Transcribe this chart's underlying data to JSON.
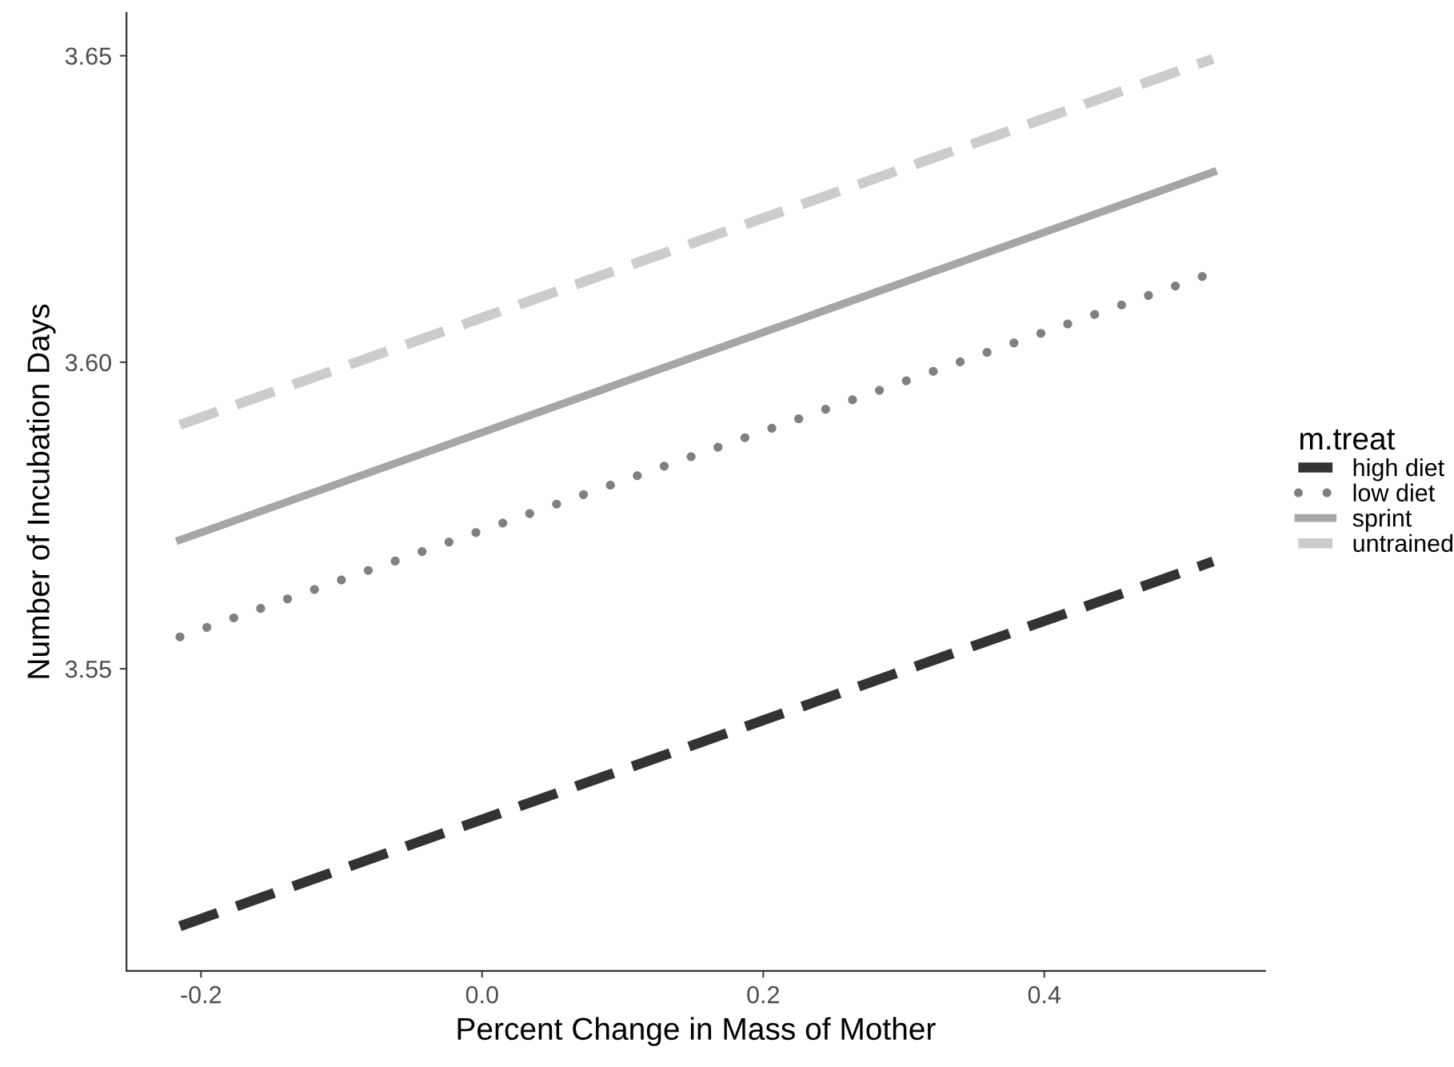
{
  "chart_data": {
    "type": "line",
    "xlabel": "Percent Change in Mass of Mother",
    "ylabel": "Number of Incubation Days",
    "legend_title": "m.treat",
    "x": [
      -0.215,
      0.52
    ],
    "series": [
      {
        "name": "high diet",
        "color": "#333333",
        "line_style": "dashed",
        "values": [
          3.508,
          3.5675
        ]
      },
      {
        "name": "low diet",
        "color": "#808080",
        "line_style": "dotted",
        "values": [
          3.5552,
          3.6146
        ]
      },
      {
        "name": "sprint",
        "color": "#a6a6a6",
        "line_style": "solid",
        "values": [
          3.571,
          3.631
        ]
      },
      {
        "name": "untrained",
        "color": "#cccccc",
        "line_style": "dashed",
        "values": [
          3.5898,
          3.6495
        ]
      }
    ],
    "xlim": [
      -0.253,
      0.557
    ],
    "ylim": [
      3.5007,
      3.657
    ],
    "xticks": [
      {
        "value": -0.2,
        "label": "-0.2"
      },
      {
        "value": 0.0,
        "label": "0.0"
      },
      {
        "value": 0.2,
        "label": "0.2"
      },
      {
        "value": 0.4,
        "label": "0.4"
      }
    ],
    "yticks": [
      {
        "value": 3.55,
        "label": "3.55"
      },
      {
        "value": 3.6,
        "label": "3.60"
      },
      {
        "value": 3.65,
        "label": "3.65"
      }
    ],
    "grid": false,
    "legend": "right"
  }
}
